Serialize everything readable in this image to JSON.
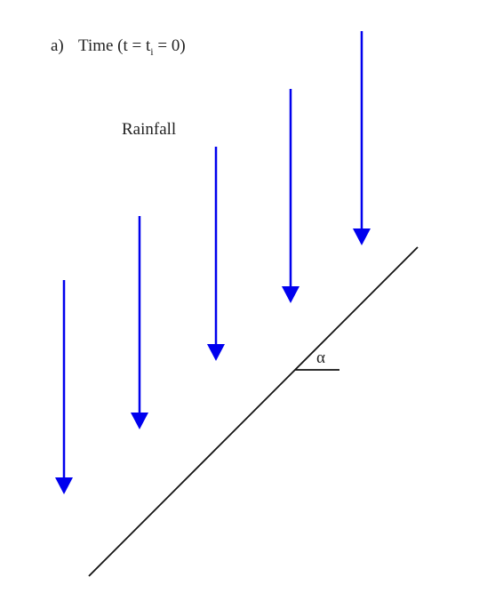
{
  "figure": {
    "label": "a)",
    "title": {
      "before": "Time (t = t",
      "subscript": "i",
      "after": " = 0)"
    },
    "rainfall_label": "Rainfall",
    "angle_label": "α"
  }
}
